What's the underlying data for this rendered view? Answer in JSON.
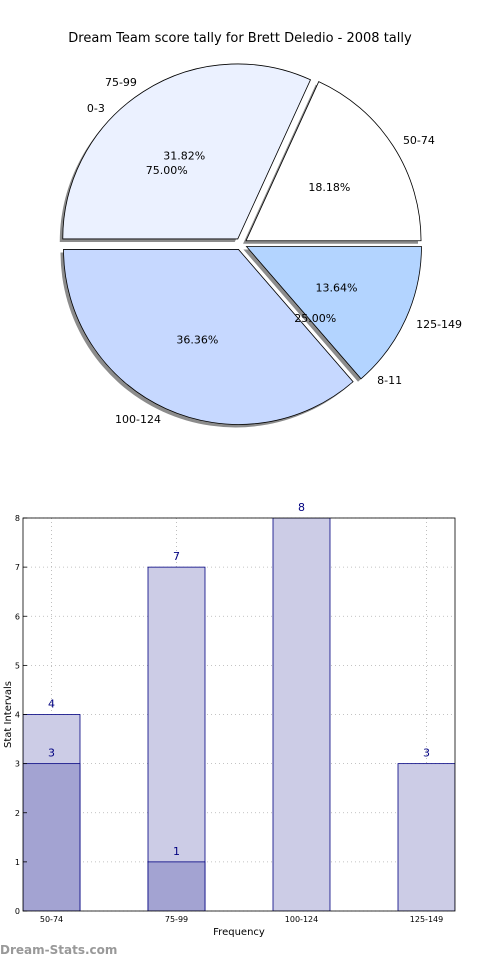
{
  "title": "Dream Team score tally for Brett Deledio - 2008 tally",
  "watermark": "Dream-Stats.com",
  "chart_data": [
    {
      "type": "pie",
      "title": "Dream Team score tally for Brett Deledio - 2008 tally",
      "rings": [
        {
          "slices": [
            {
              "label": "50-74",
              "value": 18.18,
              "pct": "18.18%",
              "color": "#ffffff"
            },
            {
              "label": "75-99",
              "value": 31.82,
              "pct": "31.82%",
              "color": "#ebf1ff"
            },
            {
              "label": "100-124",
              "value": 36.36,
              "pct": "36.36%",
              "color": "#c6d8ff"
            },
            {
              "label": "125-149",
              "value": 13.64,
              "pct": "13.64%",
              "color": "#b3d4ff"
            }
          ]
        },
        {
          "slices": [
            {
              "label": "0-3",
              "value": 75.0,
              "pct": "75.00%"
            },
            {
              "label": "8-11",
              "value": 25.0,
              "pct": "25.00%"
            }
          ]
        }
      ]
    },
    {
      "type": "bar",
      "categories": [
        "50-74",
        "75-99",
        "100-124",
        "125-149"
      ],
      "series": [
        {
          "values": [
            4,
            7,
            8,
            3
          ],
          "color": "#cccce6"
        },
        {
          "values": [
            3,
            1,
            null,
            null
          ],
          "color": "#a3a3d2"
        }
      ],
      "xlabel": "Frequency",
      "ylabel": "Stat Intervals",
      "ylim": [
        0,
        8
      ],
      "yticks": [
        "0",
        "1",
        "2",
        "3",
        "4",
        "5",
        "6",
        "7",
        "8"
      ],
      "grid": true
    }
  ]
}
